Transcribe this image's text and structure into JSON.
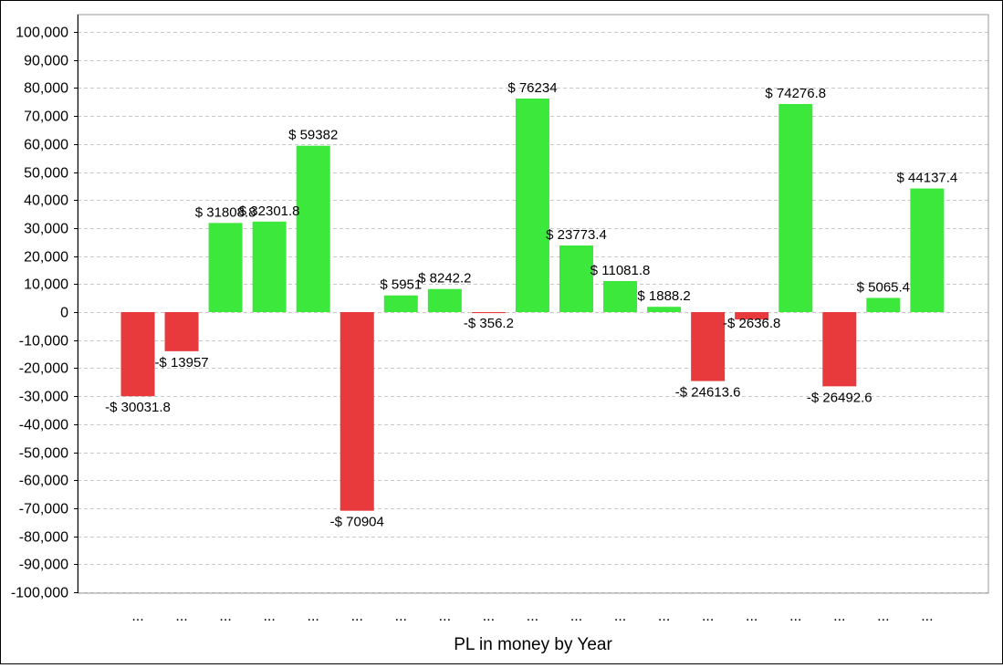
{
  "chart_data": {
    "type": "bar",
    "title": "",
    "xlabel": "PL in money by Year",
    "ylabel": "",
    "ylim": [
      -100000,
      100000
    ],
    "yticks": [
      100000,
      90000,
      80000,
      70000,
      60000,
      50000,
      40000,
      30000,
      20000,
      10000,
      0,
      -10000,
      -20000,
      -30000,
      -40000,
      -50000,
      -60000,
      -70000,
      -80000,
      -90000,
      -100000
    ],
    "ytick_labels": [
      "100,000",
      "90,000",
      "80,000",
      "70,000",
      "60,000",
      "50,000",
      "40,000",
      "30,000",
      "20,000",
      "10,000",
      "0",
      "-10,000",
      "-20,000",
      "-30,000",
      "-40,000",
      "-50,000",
      "-60,000",
      "-70,000",
      "-80,000",
      "-90,000",
      "-100,000"
    ],
    "grid": true,
    "categories": [
      "...",
      "...",
      "...",
      "...",
      "...",
      "...",
      "...",
      "...",
      "...",
      "...",
      "...",
      "...",
      "...",
      "...",
      "...",
      "...",
      "...",
      "...",
      "..."
    ],
    "values": [
      -30031.8,
      -13957,
      31808.8,
      32301.8,
      59382,
      -70904,
      5951,
      8242.2,
      -356.2,
      76234,
      23773.4,
      11081.8,
      1888.2,
      -24613.6,
      -2636.8,
      74276.8,
      -26492.6,
      5065.4,
      44137.4
    ],
    "data_labels": [
      "-$ 30031.8",
      "-$ 13957",
      "$ 31808.8",
      "$ 32301.8",
      "$ 59382",
      "-$ 70904",
      "$ 5951",
      "$ 8242.2",
      "-$ 356.2",
      "$ 76234",
      "$ 23773.4",
      "$ 11081.8",
      "$ 1888.2",
      "-$ 24613.6",
      "-$ 2636.8",
      "$ 74276.8",
      "-$ 26492.6",
      "$ 5065.4",
      "$ 44137.4"
    ],
    "colors": {
      "positive": "#3de83d",
      "negative": "#e8393c",
      "grid": "#c8c8c8",
      "axis": "#000000",
      "plot_border": "#9a9a9a",
      "text": "#000000"
    }
  }
}
